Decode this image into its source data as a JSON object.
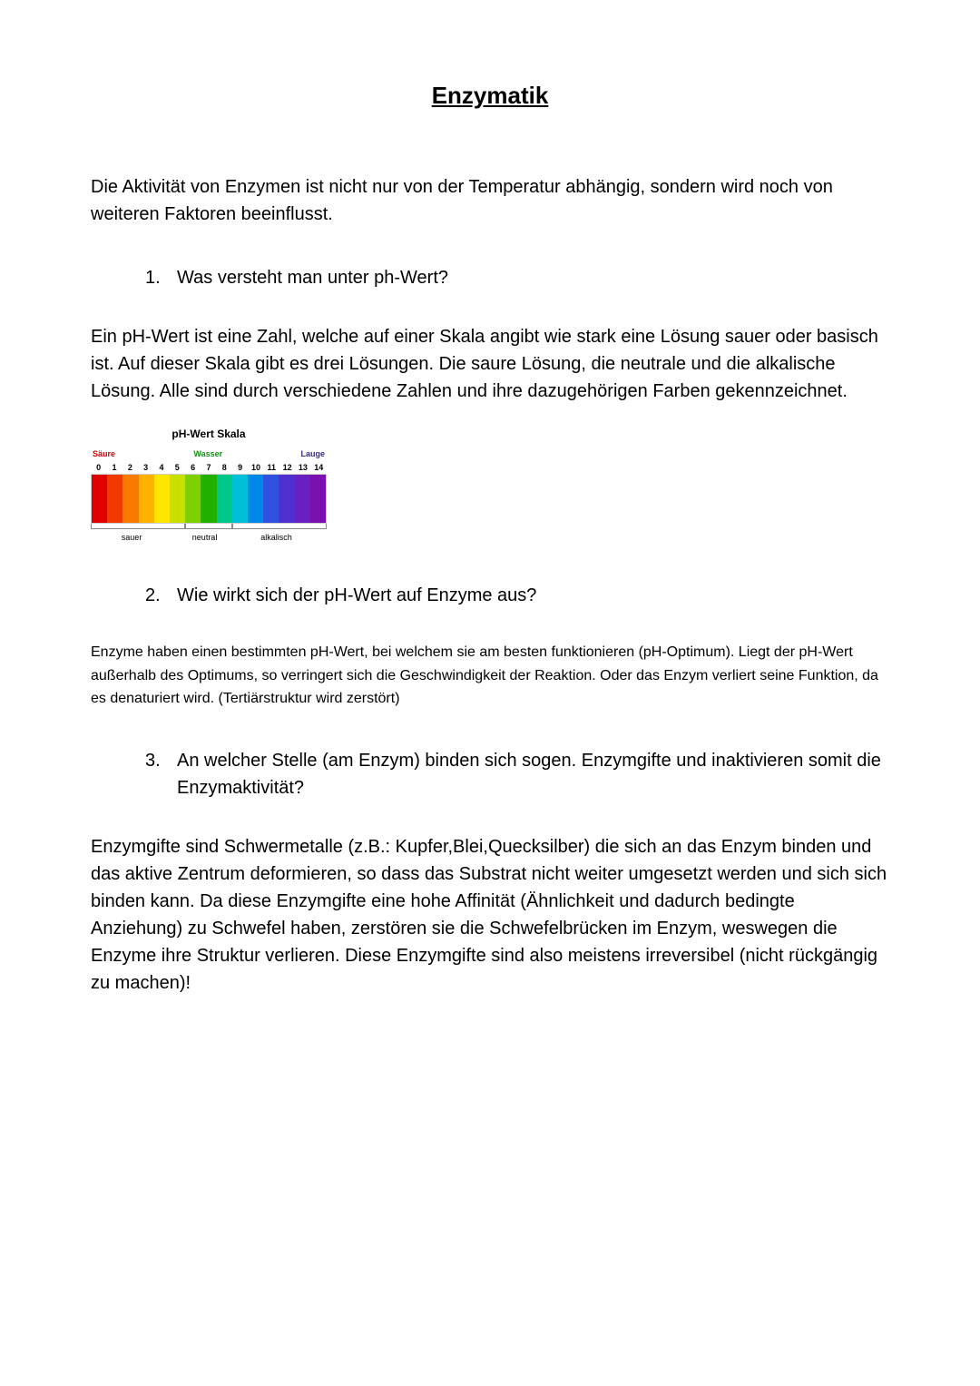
{
  "title": "Enzymatik",
  "intro": "Die Aktivität von Enzymen ist nicht nur von der Temperatur abhängig, sondern wird noch von weiteren Faktoren beeinflusst.",
  "q1": {
    "num": "1.",
    "text": "Was versteht man unter ph-Wert?"
  },
  "a1": "Ein pH-Wert ist eine Zahl, welche auf einer Skala angibt wie stark eine Lösung sauer oder basisch ist. Auf dieser Skala gibt es drei Lösungen. Die saure Lösung, die neutrale und die alkalische Lösung. Alle sind durch verschiedene Zahlen und ihre dazugehörigen Farben gekennzeichnet.",
  "q2": {
    "num": "2.",
    "text": "Wie wirkt sich der pH-Wert auf Enzyme aus?"
  },
  "a2": "Enzyme haben einen bestimmten pH-Wert, bei welchem sie am besten funktionieren (pH-Optimum). Liegt der pH-Wert außerhalb des Optimums, so verringert sich die Geschwindigkeit der Reaktion. Oder das Enzym verliert seine Funktion, da es denaturiert wird. (Tertiärstruktur wird zerstört)",
  "q3": {
    "num": "3.",
    "text": "An welcher Stelle (am Enzym) binden sich sogen. Enzymgifte und inaktivieren somit die Enzymaktivität?"
  },
  "a3": "Enzymgifte sind Schwermetalle (z.B.: Kupfer,Blei,Quecksilber) die sich an das Enzym binden und das aktive Zentrum deformieren, so dass das Substrat nicht weiter umgesetzt werden und sich sich binden kann. Da diese Enzymgifte eine hohe Affinität (Ähnlichkeit und dadurch bedingte Anziehung) zu Schwefel haben, zerstören sie die Schwefelbrücken im Enzym, weswegen die Enzyme ihre Struktur verlieren. Diese Enzymgifte sind also meistens irreversibel (nicht rückgängig zu machen)!",
  "ph_chart": {
    "title": "pH-Wert Skala",
    "top_labels": {
      "left": "Säure",
      "center": "Wasser",
      "right": "Lauge"
    },
    "numbers": [
      "0",
      "1",
      "2",
      "3",
      "4",
      "5",
      "6",
      "7",
      "8",
      "9",
      "10",
      "11",
      "12",
      "13",
      "14"
    ],
    "colors": [
      "#e10000",
      "#f03a00",
      "#f87b00",
      "#ffb200",
      "#ffe600",
      "#c8e000",
      "#7fd000",
      "#20b000",
      "#00c888",
      "#00c0d8",
      "#0088e8",
      "#3050e0",
      "#5030d0",
      "#6a1fc0",
      "#7a10b0"
    ],
    "bottom_labels": {
      "sauer": "sauer",
      "neutral": "neutral",
      "alkalisch": "alkalisch"
    },
    "brackets": {
      "sauer": {
        "left_pct": 0,
        "width_pct": 40
      },
      "neutral": {
        "left_pct": 40,
        "width_pct": 20
      },
      "alkalisch": {
        "left_pct": 60,
        "width_pct": 40
      }
    },
    "bottom_positions": {
      "sauer_pct": 13,
      "neutral_pct": 43,
      "alkalisch_pct": 72
    }
  }
}
